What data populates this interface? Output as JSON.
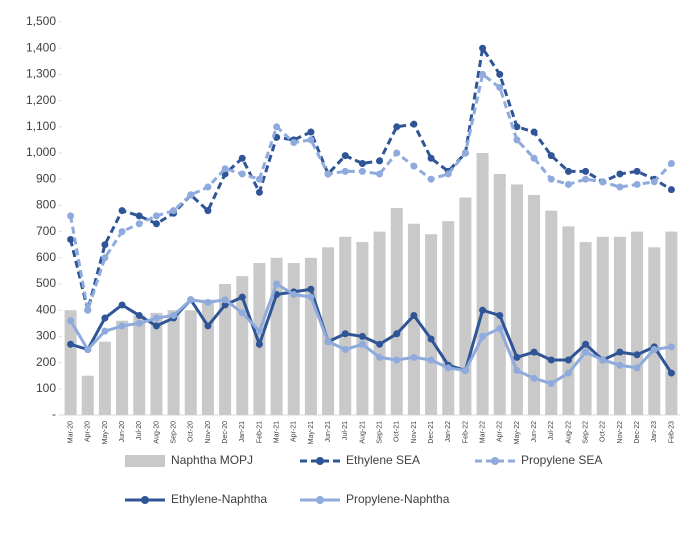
{
  "chart_data": {
    "type": "combo",
    "categories": [
      "Mar-20",
      "Apr-20",
      "May-20",
      "Jun-20",
      "Jul-20",
      "Aug-20",
      "Sep-20",
      "Oct-20",
      "Nov-20",
      "Dec-20",
      "Jan-21",
      "Feb-21",
      "Mar-21",
      "Apr-21",
      "May-21",
      "Jun-21",
      "Jul-21",
      "Aug-21",
      "Sep-21",
      "Oct-21",
      "Nov-21",
      "Dec-21",
      "Jan-22",
      "Feb-22",
      "Mar-22",
      "Apr-22",
      "May-22",
      "Jun-22",
      "Jul-22",
      "Aug-22",
      "Sep-22",
      "Oct-22",
      "Nov-22",
      "Dec-22",
      "Jan-23",
      "Feb-23"
    ],
    "series": [
      {
        "name": "Naphtha MOPJ",
        "type": "bar",
        "color": "#c9c9c9",
        "values": [
          400,
          150,
          280,
          360,
          380,
          390,
          400,
          400,
          440,
          500,
          530,
          580,
          600,
          580,
          600,
          640,
          680,
          660,
          700,
          790,
          730,
          690,
          740,
          830,
          1000,
          920,
          880,
          840,
          780,
          720,
          660,
          680,
          680,
          700,
          640,
          700
        ]
      },
      {
        "name": "Ethylene SEA",
        "type": "line",
        "dashed": true,
        "color": "#2f5597",
        "values": [
          670,
          400,
          650,
          780,
          760,
          730,
          770,
          840,
          780,
          920,
          980,
          850,
          1060,
          1050,
          1080,
          920,
          990,
          960,
          970,
          1100,
          1110,
          980,
          930,
          1000,
          1400,
          1300,
          1100,
          1080,
          990,
          930,
          930,
          890,
          920,
          930,
          900,
          860
        ]
      },
      {
        "name": "Propylene SEA",
        "type": "line",
        "dashed": true,
        "color": "#8faadc",
        "values": [
          760,
          400,
          600,
          700,
          730,
          760,
          780,
          840,
          870,
          940,
          920,
          900,
          1100,
          1040,
          1050,
          920,
          930,
          930,
          920,
          1000,
          950,
          900,
          920,
          1000,
          1300,
          1250,
          1050,
          980,
          900,
          880,
          900,
          890,
          870,
          880,
          890,
          960
        ]
      },
      {
        "name": "Ethylene-Naphtha",
        "type": "line",
        "dashed": false,
        "color": "#2f5597",
        "values": [
          270,
          250,
          370,
          420,
          380,
          340,
          370,
          440,
          340,
          420,
          450,
          270,
          460,
          470,
          480,
          280,
          310,
          300,
          270,
          310,
          380,
          290,
          190,
          170,
          400,
          380,
          220,
          240,
          210,
          210,
          270,
          210,
          240,
          230,
          260,
          160
        ]
      },
      {
        "name": "Propylene-Naphtha",
        "type": "line",
        "dashed": false,
        "color": "#8faadc",
        "values": [
          360,
          250,
          320,
          340,
          350,
          370,
          380,
          440,
          430,
          440,
          390,
          320,
          500,
          460,
          450,
          280,
          250,
          270,
          220,
          210,
          220,
          210,
          180,
          170,
          300,
          330,
          170,
          140,
          120,
          160,
          240,
          210,
          190,
          180,
          250,
          260
        ]
      }
    ],
    "ylim": [
      0,
      1500
    ],
    "yticks": [
      {
        "value": 0,
        "label": "-"
      },
      100,
      200,
      300,
      400,
      500,
      600,
      700,
      800,
      900,
      {
        "value": 1000,
        "label": "1,000"
      },
      {
        "value": 1100,
        "label": "1,100"
      },
      {
        "value": 1200,
        "label": "1,200"
      },
      {
        "value": 1300,
        "label": "1,300"
      },
      {
        "value": 1400,
        "label": "1,400"
      },
      {
        "value": 1500,
        "label": "1,500"
      }
    ],
    "grid": false,
    "legend": "bottom"
  }
}
